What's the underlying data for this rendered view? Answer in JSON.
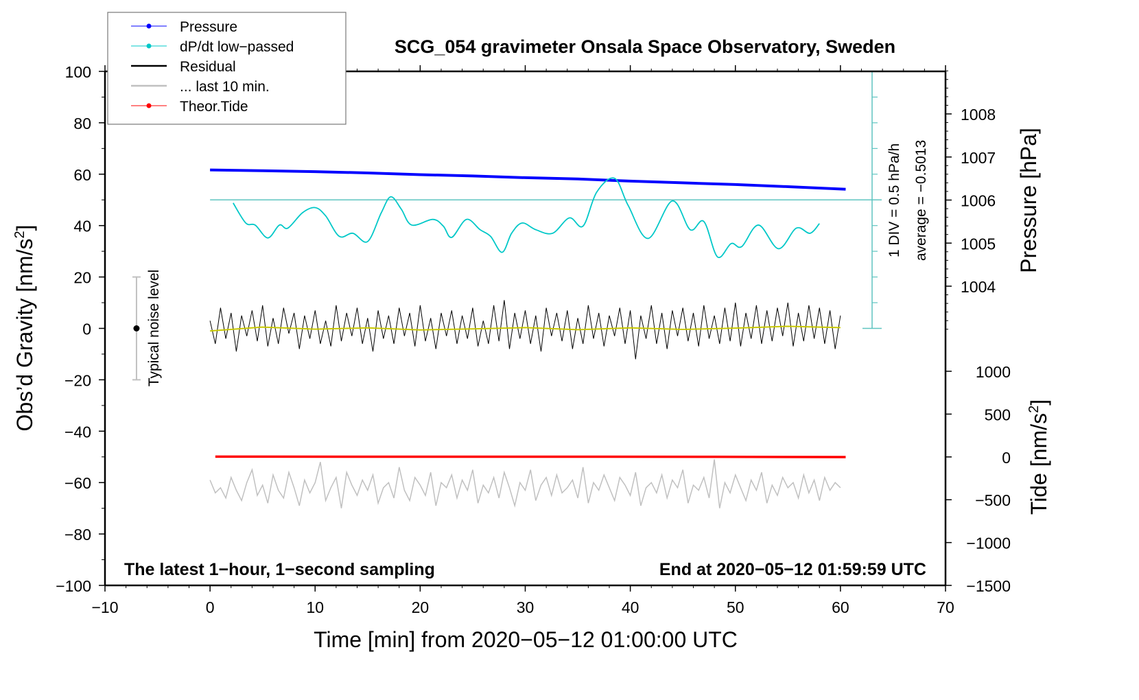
{
  "chart_data": {
    "type": "line",
    "title": "SCG_054 gravimeter Onsala Space Observatory, Sweden",
    "xlabel": "Time [min] from 2020−05−12 01:00:00 UTC",
    "ylabel": "Obs’d Gravity [nm/s²]",
    "ylabel_main": "Obs’d Gravity [nm/s",
    "ylabel_sup": "2",
    "ylabel_end": "]",
    "right_ylabel_pressure": "Pressure [hPa]",
    "right_ylabel_tide_main": "Tide [nm/s",
    "right_ylabel_tide_sup": "2",
    "right_ylabel_tide_end": "]",
    "xlim": [
      -10,
      70
    ],
    "ylim": [
      -100,
      100
    ],
    "pressure_lim_note": "1006 hPa aligned with gravity 50; 1 hPa = 16.75 nm/s² units on plot",
    "tide_lim": [
      -1500,
      1000
    ],
    "x_ticks": [
      -10,
      0,
      10,
      20,
      30,
      40,
      50,
      60,
      70
    ],
    "x_tick_labels": [
      "−10",
      "0",
      "10",
      "20",
      "30",
      "40",
      "50",
      "60",
      "70"
    ],
    "y_ticks": [
      100,
      80,
      60,
      40,
      20,
      0,
      -20,
      -40,
      -60,
      -80,
      -100
    ],
    "y_tick_labels": [
      "100",
      "80",
      "60",
      "40",
      "20",
      "0",
      "−20",
      "−40",
      "−60",
      "−80",
      "−100"
    ],
    "pressure_ticks": [
      1008,
      1007,
      1006,
      1005,
      1004
    ],
    "pressure_tick_labels": [
      "1008",
      "1007",
      "1006",
      "1005",
      "1004"
    ],
    "tide_ticks": [
      1000,
      500,
      0,
      -500,
      -1000,
      -1500
    ],
    "tide_tick_labels": [
      "1000",
      "500",
      "0",
      "−500",
      "−1000",
      "−1500"
    ],
    "annotations": {
      "bottom_left": "The latest 1−hour, 1−second sampling",
      "bottom_right": "End at 2020−05−12 01:59:59 UTC",
      "div_scale": "1 DIV = 0.5 hPa/h",
      "average": "average = −0.5013",
      "noise_label": "Typical noise level"
    },
    "noise_bar": {
      "t": -7,
      "center": 0,
      "half_range": 20
    },
    "legend": {
      "placement": "top-left",
      "entries": [
        {
          "label": "Pressure",
          "color": "#0000ff",
          "marker": true
        },
        {
          "label": "dP/dt low−passed",
          "color": "#00c8c8",
          "marker": true
        },
        {
          "label": "Residual",
          "color": "#000000",
          "marker": false
        },
        {
          "label": "... last 10 min.",
          "color": "#c0c0c0",
          "marker": false
        },
        {
          "label": "Theor.Tide",
          "color": "#ff0000",
          "marker": true
        }
      ]
    },
    "colors": {
      "pressure": "#0000ff",
      "dpdt": "#00c8c8",
      "dpdt_axis": "#5fc4c0",
      "residual": "#000000",
      "smoothed": "#c8c800",
      "last10": "#c0c0c0",
      "tide": "#ff0000"
    },
    "series": {
      "pressure": {
        "name": "Pressure",
        "unit": "hPa",
        "t": [
          0,
          5,
          10,
          15,
          20,
          25,
          30,
          35,
          40,
          45,
          50,
          55,
          60.5
        ],
        "values": [
          1006.7,
          1006.68,
          1006.66,
          1006.63,
          1006.59,
          1006.56,
          1006.52,
          1006.49,
          1006.44,
          1006.4,
          1006.36,
          1006.31,
          1006.25
        ]
      },
      "dpdt": {
        "name": "dP/dt low-passed",
        "unit": "hPa/h",
        "zero_level_gravity": 50,
        "div_hpa_per_h": 0.5,
        "div_gravity": 10,
        "t": [
          2.2,
          3.4,
          4.3,
          5.5,
          6.6,
          7.4,
          8.8,
          10.0,
          11.0,
          12.3,
          13.6,
          15.0,
          16.3,
          17.2,
          18.2,
          19.2,
          21.2,
          22.2,
          23.0,
          24.4,
          25.7,
          26.7,
          27.8,
          28.7,
          29.7,
          31.0,
          32.6,
          34.2,
          35.5,
          36.8,
          38.5,
          39.8,
          41.7,
          44.0,
          45.7,
          47.0,
          48.3,
          49.6,
          50.6,
          52.2,
          54.1,
          55.8,
          57.1,
          58.0
        ],
        "values": [
          -0.06,
          -0.45,
          -0.49,
          -0.74,
          -0.49,
          -0.55,
          -0.25,
          -0.15,
          -0.31,
          -0.71,
          -0.65,
          -0.81,
          -0.25,
          0.06,
          -0.18,
          -0.49,
          -0.38,
          -0.51,
          -0.73,
          -0.38,
          -0.58,
          -0.71,
          -1.02,
          -0.65,
          -0.45,
          -0.58,
          -0.65,
          -0.35,
          -0.51,
          0.15,
          0.42,
          -0.11,
          -0.75,
          -0.02,
          -0.58,
          -0.42,
          -1.11,
          -0.85,
          -0.91,
          -0.49,
          -0.95,
          -0.55,
          -0.65,
          -0.46
        ]
      },
      "residual": {
        "name": "Residual",
        "t_start": 0,
        "t_step": 0.5,
        "values": [
          3,
          -6,
          8,
          -4,
          6,
          -9,
          5,
          -3,
          7,
          -5,
          9,
          -7,
          4,
          -6,
          8,
          -2,
          6,
          -8,
          5,
          -4,
          7,
          -6,
          3,
          -7,
          9,
          -5,
          6,
          -3,
          8,
          -6,
          4,
          -9,
          7,
          -4,
          5,
          -6,
          8,
          -3,
          6,
          -7,
          9,
          -5,
          4,
          -8,
          6,
          -3,
          7,
          -6,
          5,
          -4,
          8,
          -7,
          3,
          -6,
          9,
          -5,
          11,
          -8,
          6,
          -4,
          7,
          -6,
          5,
          -9,
          8,
          -3,
          6,
          -5,
          7,
          -8,
          4,
          -6,
          9,
          -4,
          6,
          -7,
          5,
          -3,
          8,
          -6,
          7,
          -12,
          5,
          -4,
          9,
          -6,
          6,
          -8,
          7,
          -3,
          8,
          -5,
          6,
          -7,
          9,
          -4,
          5,
          -6,
          8,
          -5,
          10,
          -7,
          6,
          -4,
          9,
          -6,
          7,
          -5,
          8,
          -3,
          10,
          -7,
          6,
          -5,
          9,
          -4,
          8,
          -6,
          7,
          -8,
          5
        ]
      },
      "residual_smoothed": {
        "name": "Residual smoothed",
        "t_start": 0,
        "t_step": 5,
        "values": [
          -1,
          0.5,
          -0.3,
          0.2,
          -0.6,
          -0.2,
          0.3,
          -0.5,
          0.2,
          -0.4,
          0.1,
          0.8,
          0.3
        ]
      },
      "last10": {
        "name": "... last 10 min.",
        "t_start": 0,
        "t_step": 0.5,
        "values": [
          -59,
          -64,
          -62,
          -66,
          -58,
          -63,
          -67,
          -60,
          -55,
          -65,
          -61,
          -68,
          -57,
          -63,
          -66,
          -56,
          -62,
          -69,
          -59,
          -64,
          -60,
          -52,
          -67,
          -62,
          -58,
          -70,
          -56,
          -61,
          -65,
          -59,
          -63,
          -57,
          -68,
          -62,
          -60,
          -66,
          -54,
          -63,
          -67,
          -58,
          -61,
          -65,
          -56,
          -69,
          -60,
          -62,
          -57,
          -66,
          -59,
          -63,
          -55,
          -68,
          -61,
          -64,
          -58,
          -66,
          -56,
          -62,
          -69,
          -60,
          -63,
          -55,
          -67,
          -61,
          -58,
          -65,
          -57,
          -64,
          -62,
          -59,
          -66,
          -54,
          -68,
          -60,
          -63,
          -57,
          -62,
          -67,
          -58,
          -61,
          -65,
          -56,
          -69,
          -62,
          -60,
          -64,
          -57,
          -66,
          -59,
          -62,
          -55,
          -68,
          -61,
          -63,
          -58,
          -66,
          -51,
          -70,
          -60,
          -64,
          -57,
          -62,
          -67,
          -59,
          -63,
          -56,
          -68,
          -61,
          -65,
          -58,
          -62,
          -60,
          -66,
          -57,
          -64,
          -59,
          -67,
          -58,
          -63,
          -60,
          -62
        ]
      },
      "tide": {
        "name": "Theor.Tide",
        "unit": "nm/s²",
        "t": [
          0.5,
          48,
          60.5
        ],
        "values": [
          3,
          2,
          -2
        ]
      }
    }
  }
}
